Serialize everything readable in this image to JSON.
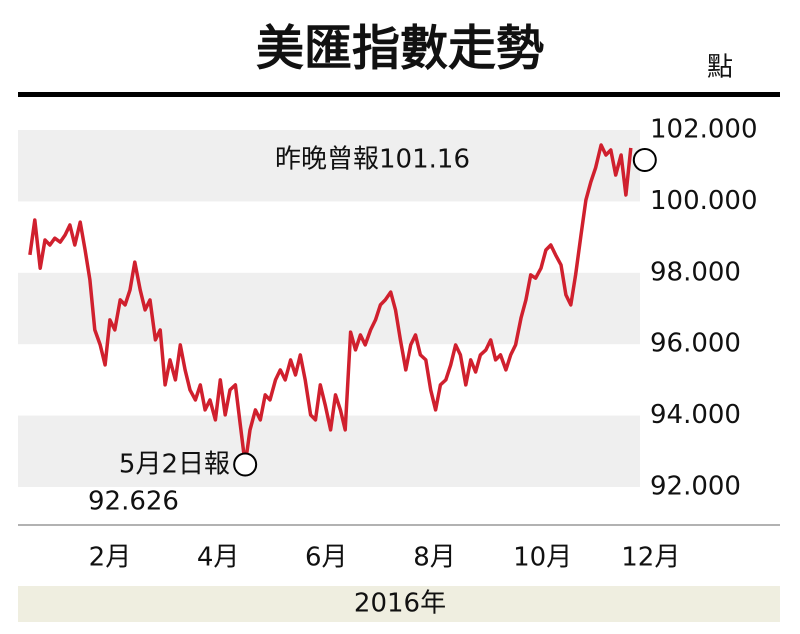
{
  "chart_data": {
    "type": "line",
    "title": "美匯指數走勢",
    "unit": "點",
    "xlabel": "2016年",
    "annotations": [
      "昨晚曾報101.16",
      "5月2日報",
      "92.626"
    ],
    "xlim": [
      0.3,
      11.8
    ],
    "xticks": [
      {
        "value": 2,
        "label": "2月"
      },
      {
        "value": 4,
        "label": "4月"
      },
      {
        "value": 6,
        "label": "6月"
      },
      {
        "value": 8,
        "label": "8月"
      },
      {
        "value": 10,
        "label": "10月"
      },
      {
        "value": 12,
        "label": "12月"
      }
    ],
    "ylim": [
      92,
      102
    ],
    "yticks": [
      {
        "value": 92,
        "label": "92.000"
      },
      {
        "value": 94,
        "label": "94.000"
      },
      {
        "value": 96,
        "label": "96.000"
      },
      {
        "value": 98,
        "label": "98.000"
      },
      {
        "value": 100,
        "label": "100.000"
      },
      {
        "value": 102,
        "label": "102.000"
      }
    ],
    "band_color": "#efefef",
    "x": [
      0.52,
      0.61,
      0.71,
      0.8,
      0.89,
      0.98,
      1.08,
      1.17,
      1.26,
      1.35,
      1.45,
      1.54,
      1.63,
      1.72,
      1.82,
      1.91,
      2.0,
      2.09,
      2.19,
      2.28,
      2.37,
      2.46,
      2.56,
      2.65,
      2.74,
      2.84,
      2.93,
      3.02,
      3.11,
      3.21,
      3.3,
      3.39,
      3.48,
      3.58,
      3.67,
      3.76,
      3.85,
      3.95,
      4.04,
      4.13,
      4.22,
      4.32,
      4.41,
      4.5,
      4.59,
      4.69,
      4.78,
      4.87,
      4.96,
      5.06,
      5.15,
      5.24,
      5.34,
      5.43,
      5.52,
      5.61,
      5.71,
      5.8,
      5.89,
      5.98,
      6.08,
      6.17,
      6.26,
      6.35,
      6.45,
      6.54,
      6.63,
      6.72,
      6.82,
      6.91,
      7.0,
      7.09,
      7.19,
      7.28,
      7.37,
      7.47,
      7.56,
      7.65,
      7.74,
      7.84,
      7.93,
      8.02,
      8.11,
      8.21,
      8.3,
      8.39,
      8.48,
      8.58,
      8.67,
      8.76,
      8.85,
      8.95,
      9.04,
      9.13,
      9.22,
      9.32,
      9.41,
      9.5,
      9.6,
      9.69,
      9.78,
      9.87,
      9.97,
      10.06,
      10.15,
      10.24,
      10.34,
      10.43,
      10.52,
      10.61,
      10.71,
      10.8,
      10.89,
      10.98,
      11.08,
      11.17,
      11.26,
      11.35,
      11.45,
      11.54,
      11.63
    ],
    "series": [
      {
        "color": "#d0202e",
        "values": [
          98.5,
          99.48,
          98.13,
          98.92,
          98.78,
          98.97,
          98.86,
          99.06,
          99.34,
          98.78,
          99.42,
          98.64,
          97.8,
          96.4,
          95.98,
          95.42,
          96.68,
          96.4,
          97.24,
          97.1,
          97.52,
          98.3,
          97.52,
          96.96,
          97.24,
          96.12,
          96.4,
          94.86,
          95.56,
          95.0,
          95.98,
          95.28,
          94.72,
          94.44,
          94.86,
          94.16,
          94.44,
          93.88,
          95.0,
          94.02,
          94.72,
          94.86,
          93.74,
          92.63,
          93.6,
          94.16,
          93.88,
          94.58,
          94.44,
          95.0,
          95.28,
          95.0,
          95.56,
          95.14,
          95.7,
          95.0,
          94.02,
          93.88,
          94.86,
          94.3,
          93.6,
          94.58,
          94.16,
          93.6,
          96.34,
          95.84,
          96.26,
          95.98,
          96.4,
          96.68,
          97.1,
          97.24,
          97.46,
          96.96,
          96.12,
          95.28,
          95.98,
          96.26,
          95.7,
          95.56,
          94.72,
          94.16,
          94.86,
          95.0,
          95.42,
          95.98,
          95.7,
          94.86,
          95.56,
          95.22,
          95.7,
          95.84,
          96.12,
          95.56,
          95.7,
          95.28,
          95.7,
          95.98,
          96.73,
          97.24,
          97.94,
          97.85,
          98.13,
          98.64,
          98.78,
          98.5,
          98.22,
          97.38,
          97.1,
          97.94,
          99.06,
          100.04,
          100.54,
          100.94,
          101.58,
          101.3,
          101.44,
          100.74,
          101.3,
          100.18,
          101.5
        ]
      }
    ]
  }
}
